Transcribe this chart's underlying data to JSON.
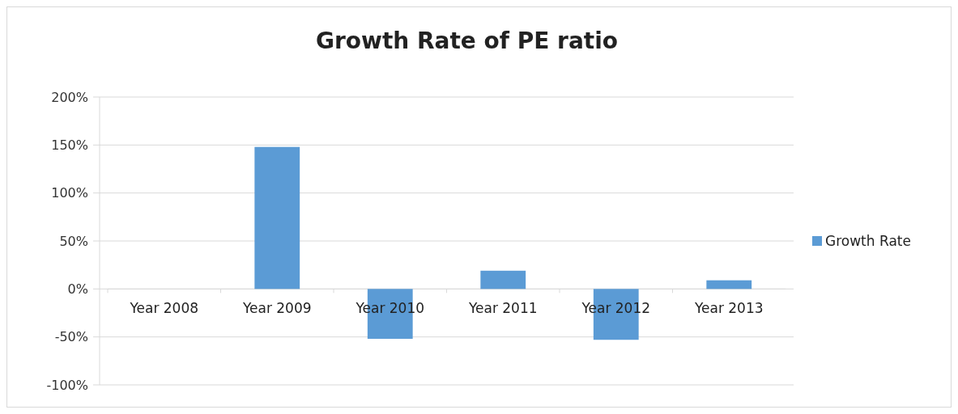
{
  "chart_data": {
    "type": "bar",
    "title": "Growth Rate of PE ratio",
    "categories": [
      "Year 2008",
      "Year 2009",
      "Year 2010",
      "Year 2011",
      "Year 2012",
      "Year 2013"
    ],
    "series": [
      {
        "name": "Growth Rate",
        "color": "#5b9bd5",
        "values": [
          0,
          148,
          -52,
          19,
          -53,
          9
        ]
      }
    ],
    "ylim": [
      -100,
      200
    ],
    "yticks": [
      {
        "value": -100,
        "label": "-100%"
      },
      {
        "value": -50,
        "label": "-50%"
      },
      {
        "value": 0,
        "label": "0%"
      },
      {
        "value": 50,
        "label": "50%"
      },
      {
        "value": 100,
        "label": "100%"
      },
      {
        "value": 150,
        "label": "150%"
      },
      {
        "value": 200,
        "label": "200%"
      }
    ],
    "grid": "y",
    "legend": "right"
  }
}
